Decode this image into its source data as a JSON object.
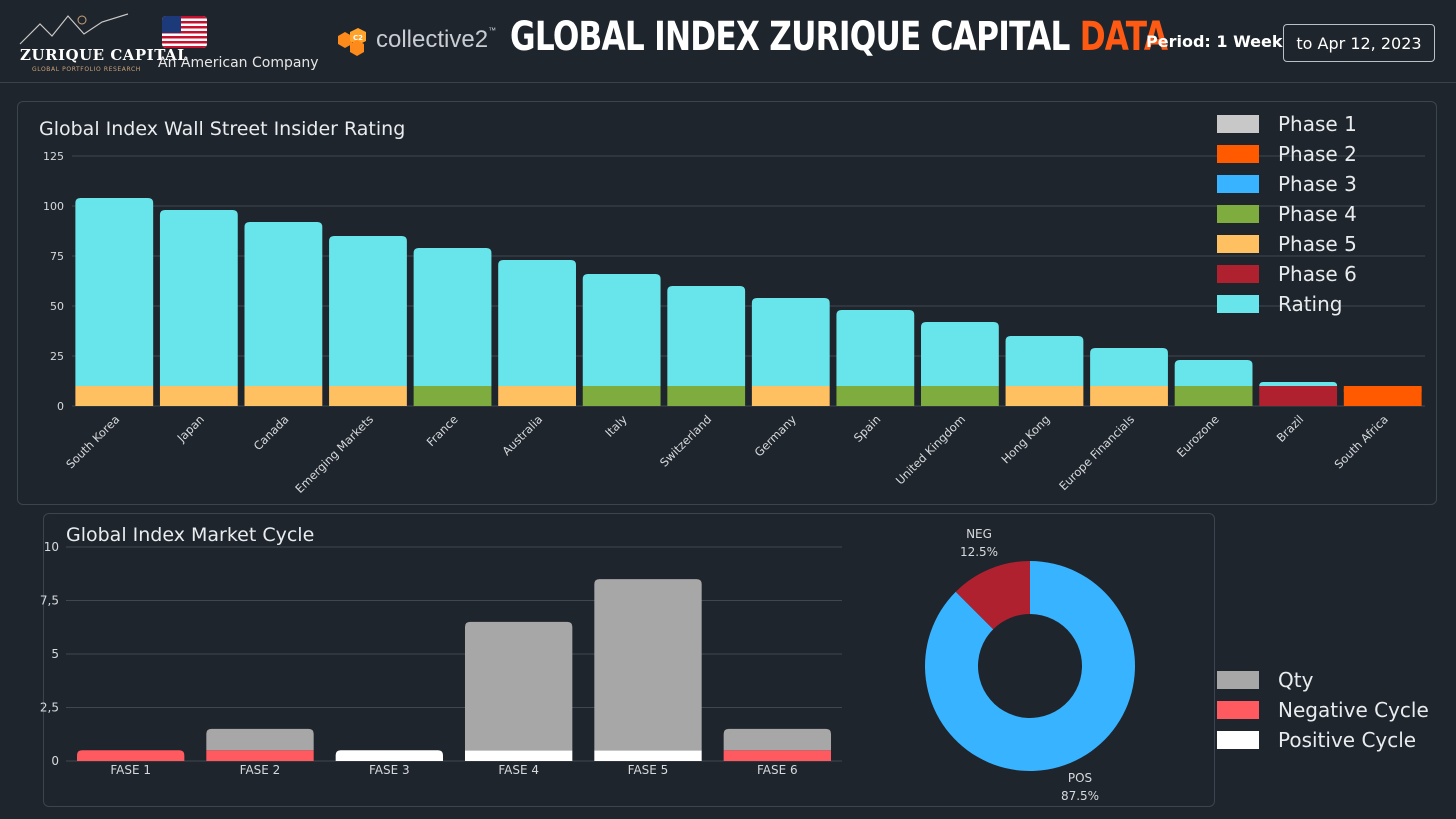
{
  "header": {
    "brand_name": "ZURIQUE CAPITAL",
    "brand_tagline": "GLOBAL PORTFOLIO RESEARCH",
    "company": "An American Company",
    "partner_name": "collective2",
    "partner_badge": "C2",
    "title_main": "GLOBAL INDEX ZURIQUE CAPITAL ",
    "title_accent": "DATA",
    "period": "Period: 1 Week",
    "date": "to Apr 12, 2023"
  },
  "colors": {
    "background": "#1f252c",
    "accent": "#ff5a13",
    "phase1": "#c8c8c8",
    "phase2": "#ff5a00",
    "phase3": "#38b3ff",
    "phase4": "#7fac3f",
    "phase5": "#ffc061",
    "phase6": "#b02130",
    "rating": "#68e5ea",
    "qty": "#a7a7a7",
    "negative": "#ff5a5f",
    "positive": "#ffffff"
  },
  "chart_data": [
    {
      "type": "bar",
      "title": "Global Index Wall Street Insider Rating",
      "xlabel": "",
      "ylabel": "",
      "ylim": [
        0,
        125
      ],
      "yticks": [
        0,
        25,
        50,
        75,
        100,
        125
      ],
      "grid": true,
      "legend_position": "top-right",
      "stacked": true,
      "categories": [
        "South Korea",
        "Japan",
        "Canada",
        "Emerging Markets",
        "France",
        "Australia",
        "Italy",
        "Switzerland",
        "Germany",
        "Spain",
        "United Kingdom",
        "Hong Kong",
        "Europe Financials",
        "Eurozone",
        "Brazil",
        "South Africa"
      ],
      "base_phase": [
        "Phase 5",
        "Phase 5",
        "Phase 5",
        "Phase 5",
        "Phase 4",
        "Phase 5",
        "Phase 4",
        "Phase 4",
        "Phase 5",
        "Phase 4",
        "Phase 4",
        "Phase 5",
        "Phase 5",
        "Phase 4",
        "Phase 6",
        "Phase 2"
      ],
      "base_value": 10,
      "series": [
        {
          "name": "Phase 1",
          "values": [
            0,
            0,
            0,
            0,
            0,
            0,
            0,
            0,
            0,
            0,
            0,
            0,
            0,
            0,
            0,
            0
          ]
        },
        {
          "name": "Phase 2",
          "values": [
            0,
            0,
            0,
            0,
            0,
            0,
            0,
            0,
            0,
            0,
            0,
            0,
            0,
            0,
            0,
            10
          ]
        },
        {
          "name": "Phase 3",
          "values": [
            0,
            0,
            0,
            0,
            0,
            0,
            0,
            0,
            0,
            0,
            0,
            0,
            0,
            0,
            0,
            0
          ]
        },
        {
          "name": "Phase 4",
          "values": [
            0,
            0,
            0,
            0,
            10,
            0,
            10,
            10,
            0,
            10,
            10,
            0,
            0,
            10,
            0,
            0
          ]
        },
        {
          "name": "Phase 5",
          "values": [
            10,
            10,
            10,
            10,
            0,
            10,
            0,
            0,
            10,
            0,
            0,
            10,
            10,
            0,
            0,
            0
          ]
        },
        {
          "name": "Phase 6",
          "values": [
            0,
            0,
            0,
            0,
            0,
            0,
            0,
            0,
            0,
            0,
            0,
            0,
            0,
            0,
            10,
            0
          ]
        },
        {
          "name": "Rating",
          "values": [
            94,
            88,
            82,
            75,
            69,
            63,
            56,
            50,
            44,
            38,
            32,
            25,
            19,
            13,
            2,
            0
          ]
        }
      ]
    },
    {
      "type": "bar",
      "title": "Global Index Market Cycle",
      "xlabel": "",
      "ylabel": "",
      "ylim": [
        0,
        10
      ],
      "yticks": [
        "0",
        "2,5",
        "5",
        "7,5",
        "10"
      ],
      "grid": true,
      "legend_position": "right",
      "stacked": true,
      "categories": [
        "FASE 1",
        "FASE 2",
        "FASE 3",
        "FASE 4",
        "FASE 5",
        "FASE 6"
      ],
      "series": [
        {
          "name": "Negative Cycle",
          "values": [
            0.5,
            0.5,
            0,
            0,
            0,
            0.5
          ]
        },
        {
          "name": "Positive Cycle",
          "values": [
            0,
            0,
            0.5,
            0.5,
            0.5,
            0
          ]
        },
        {
          "name": "Qty",
          "values": [
            0,
            1,
            0,
            6,
            8,
            1
          ]
        }
      ]
    },
    {
      "type": "pie",
      "donut": true,
      "labels": [
        "POS",
        "NEG"
      ],
      "values": [
        87.5,
        12.5
      ],
      "value_labels": [
        "87.5%",
        "12.5%"
      ],
      "colors": [
        "#38b3ff",
        "#b02130"
      ]
    }
  ],
  "legend_phases": [
    "Phase 1",
    "Phase 2",
    "Phase 3",
    "Phase 4",
    "Phase 5",
    "Phase 6",
    "Rating"
  ],
  "legend_cycle": [
    "Qty",
    "Negative Cycle",
    "Positive Cycle"
  ]
}
